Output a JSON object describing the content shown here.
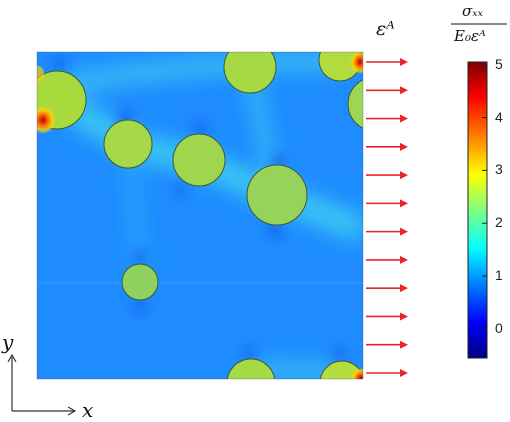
{
  "labels": {
    "strain": "εᴬ",
    "x_axis": "x",
    "y_axis": "y",
    "colorbar_numerator": "σₓₓ",
    "colorbar_denominator": "E₀εᴬ"
  },
  "colorbar": {
    "ticks": [
      "5",
      "4",
      "3",
      "2",
      "1",
      "0"
    ],
    "tick_values": [
      5,
      4,
      3,
      2,
      1,
      0
    ],
    "min": -0.55,
    "max": 5.05,
    "colors": [
      "#00007f",
      "#0000ff",
      "#007fff",
      "#00ffff",
      "#7fff7f",
      "#ffff00",
      "#ff7f00",
      "#ff0000",
      "#7f0000"
    ]
  },
  "colors": {
    "matrix": "#1f8fff",
    "inclusion": "#9ed84a",
    "arrow": "#e8262a"
  }
}
